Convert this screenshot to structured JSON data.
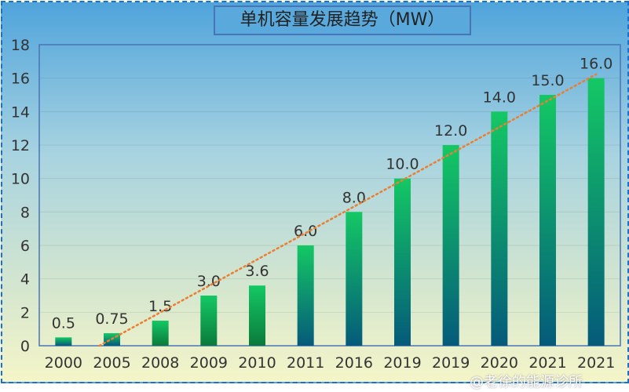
{
  "chart_data": {
    "type": "bar",
    "title": "单机容量发展趋势（MW）",
    "categories": [
      "2000",
      "2005",
      "2008",
      "2009",
      "2010",
      "2011",
      "2016",
      "2019",
      "2019",
      "2020",
      "2021",
      "2021"
    ],
    "values": [
      0.5,
      0.75,
      1.5,
      3.0,
      3.6,
      6.0,
      8.0,
      10.0,
      12.0,
      14.0,
      15.0,
      16.0
    ],
    "data_labels": [
      "0.5",
      "0.75",
      "1.5",
      "3.0",
      "3.6",
      "6.0",
      "8.0",
      "10.0",
      "12.0",
      "14.0",
      "15.0",
      "16.0"
    ],
    "ylim": [
      0,
      18
    ],
    "yticks": [
      0,
      2,
      4,
      6,
      8,
      10,
      12,
      14,
      16,
      18
    ],
    "xlabel": "",
    "ylabel": "",
    "grid": true,
    "trendline": {
      "type": "linear",
      "style": "dotted",
      "color": "#ed7d31"
    }
  },
  "watermark": "@老徐的能源诊所"
}
